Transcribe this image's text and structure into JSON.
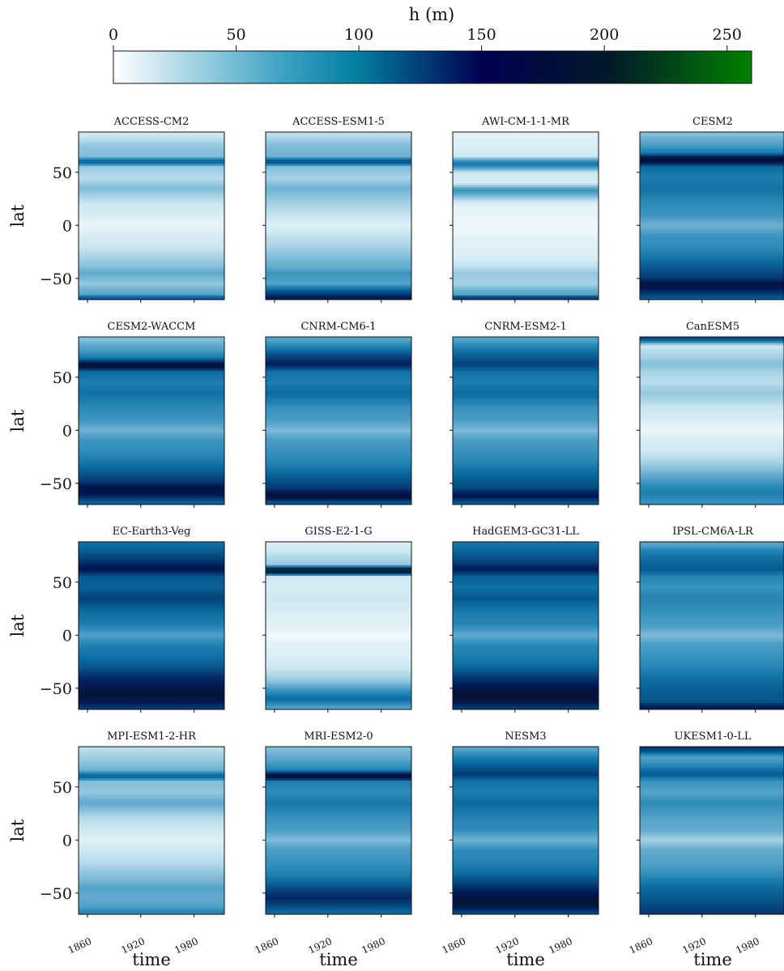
{
  "colorbar": {
    "label": "h (m)",
    "ticks": [
      "0",
      "50",
      "100",
      "150",
      "200",
      "250"
    ],
    "tick_values": [
      0,
      50,
      100,
      150,
      200,
      250
    ],
    "range": [
      0,
      260
    ],
    "colormap": "ocean_r",
    "color_stops": [
      "#ffffff",
      "#0380a0",
      "#000050",
      "#008000"
    ]
  },
  "chart_data": {
    "type": "heatmap",
    "layout": "4x4 small multiples, shared axes",
    "xlabel": "time",
    "ylabel": "lat",
    "x_ticks": [
      "1860",
      "1920",
      "1980"
    ],
    "y_ticks": [
      "50",
      "0",
      "−50"
    ],
    "y_tick_values": [
      50,
      0,
      -50
    ],
    "ylim": [
      -70,
      88
    ],
    "xlim": [
      1850,
      2014
    ],
    "colorbar_label": "h (m)",
    "panels": [
      {
        "title": "ACCESS-CM2",
        "profile": [
          [
            -68,
            110
          ],
          [
            -65,
            60
          ],
          [
            -55,
            40
          ],
          [
            -45,
            55
          ],
          [
            -40,
            45
          ],
          [
            -30,
            35
          ],
          [
            -20,
            25
          ],
          [
            -10,
            20
          ],
          [
            0,
            12
          ],
          [
            10,
            20
          ],
          [
            20,
            25
          ],
          [
            35,
            45
          ],
          [
            45,
            30
          ],
          [
            55,
            40
          ],
          [
            60,
            110
          ],
          [
            65,
            45
          ],
          [
            75,
            40
          ],
          [
            85,
            25
          ]
        ]
      },
      {
        "title": "ACCESS-ESM1-5",
        "profile": [
          [
            -68,
            150
          ],
          [
            -65,
            130
          ],
          [
            -55,
            60
          ],
          [
            -45,
            70
          ],
          [
            -40,
            55
          ],
          [
            -30,
            45
          ],
          [
            -20,
            35
          ],
          [
            -10,
            28
          ],
          [
            0,
            18
          ],
          [
            10,
            28
          ],
          [
            20,
            35
          ],
          [
            35,
            50
          ],
          [
            45,
            35
          ],
          [
            55,
            45
          ],
          [
            60,
            125
          ],
          [
            65,
            50
          ],
          [
            75,
            45
          ],
          [
            85,
            30
          ]
        ]
      },
      {
        "title": "AWI-CM-1-1-MR",
        "profile": [
          [
            -68,
            130
          ],
          [
            -65,
            60
          ],
          [
            -55,
            35
          ],
          [
            -45,
            40
          ],
          [
            -40,
            30
          ],
          [
            -30,
            20
          ],
          [
            -20,
            15
          ],
          [
            -10,
            12
          ],
          [
            0,
            8
          ],
          [
            10,
            12
          ],
          [
            20,
            15
          ],
          [
            33,
            70
          ],
          [
            40,
            20
          ],
          [
            50,
            25
          ],
          [
            58,
            95
          ],
          [
            65,
            25
          ],
          [
            75,
            20
          ],
          [
            85,
            15
          ]
        ]
      },
      {
        "title": "CESM2",
        "profile": [
          [
            -68,
            110
          ],
          [
            -60,
            150
          ],
          [
            -55,
            165
          ],
          [
            -50,
            130
          ],
          [
            -40,
            110
          ],
          [
            -30,
            90
          ],
          [
            -20,
            75
          ],
          [
            -10,
            70
          ],
          [
            0,
            50
          ],
          [
            10,
            70
          ],
          [
            20,
            75
          ],
          [
            35,
            95
          ],
          [
            45,
            85
          ],
          [
            55,
            100
          ],
          [
            62,
            190
          ],
          [
            68,
            90
          ],
          [
            75,
            65
          ],
          [
            85,
            45
          ]
        ]
      },
      {
        "title": "CESM2-WACCM",
        "profile": [
          [
            -68,
            105
          ],
          [
            -60,
            155
          ],
          [
            -55,
            165
          ],
          [
            -50,
            135
          ],
          [
            -40,
            110
          ],
          [
            -30,
            90
          ],
          [
            -20,
            75
          ],
          [
            -10,
            70
          ],
          [
            0,
            50
          ],
          [
            10,
            70
          ],
          [
            20,
            75
          ],
          [
            35,
            95
          ],
          [
            45,
            85
          ],
          [
            55,
            100
          ],
          [
            61,
            185
          ],
          [
            68,
            90
          ],
          [
            75,
            65
          ],
          [
            85,
            45
          ]
        ]
      },
      {
        "title": "CNRM-CM6-1",
        "profile": [
          [
            -68,
            110
          ],
          [
            -62,
            180
          ],
          [
            -55,
            130
          ],
          [
            -45,
            110
          ],
          [
            -38,
            95
          ],
          [
            -30,
            80
          ],
          [
            -20,
            70
          ],
          [
            -10,
            65
          ],
          [
            0,
            45
          ],
          [
            10,
            65
          ],
          [
            20,
            70
          ],
          [
            35,
            100
          ],
          [
            45,
            85
          ],
          [
            55,
            95
          ],
          [
            62,
            150
          ],
          [
            70,
            120
          ],
          [
            78,
            85
          ],
          [
            85,
            60
          ]
        ]
      },
      {
        "title": "CNRM-ESM2-1",
        "profile": [
          [
            -68,
            110
          ],
          [
            -62,
            160
          ],
          [
            -55,
            120
          ],
          [
            -45,
            105
          ],
          [
            -38,
            95
          ],
          [
            -30,
            80
          ],
          [
            -20,
            70
          ],
          [
            -10,
            65
          ],
          [
            0,
            45
          ],
          [
            10,
            65
          ],
          [
            20,
            70
          ],
          [
            35,
            100
          ],
          [
            45,
            85
          ],
          [
            55,
            95
          ],
          [
            62,
            125
          ],
          [
            70,
            105
          ],
          [
            78,
            85
          ],
          [
            85,
            60
          ]
        ]
      },
      {
        "title": "CanESM5",
        "profile": [
          [
            -68,
            70
          ],
          [
            -60,
            85
          ],
          [
            -55,
            80
          ],
          [
            -45,
            60
          ],
          [
            -40,
            50
          ],
          [
            -30,
            35
          ],
          [
            -20,
            25
          ],
          [
            -10,
            20
          ],
          [
            0,
            10
          ],
          [
            10,
            20
          ],
          [
            20,
            25
          ],
          [
            35,
            40
          ],
          [
            45,
            30
          ],
          [
            55,
            35
          ],
          [
            62,
            45
          ],
          [
            70,
            35
          ],
          [
            80,
            25
          ],
          [
            86,
            120
          ]
        ]
      },
      {
        "title": "EC-Earth3-Veg",
        "profile": [
          [
            -68,
            130
          ],
          [
            -60,
            165
          ],
          [
            -55,
            175
          ],
          [
            -48,
            150
          ],
          [
            -40,
            140
          ],
          [
            -30,
            110
          ],
          [
            -20,
            95
          ],
          [
            -10,
            85
          ],
          [
            0,
            60
          ],
          [
            10,
            85
          ],
          [
            20,
            95
          ],
          [
            35,
            125
          ],
          [
            45,
            105
          ],
          [
            55,
            110
          ],
          [
            62,
            160
          ],
          [
            70,
            130
          ],
          [
            78,
            110
          ],
          [
            86,
            95
          ]
        ]
      },
      {
        "title": "GISS-E2-1-G",
        "profile": [
          [
            -68,
            60
          ],
          [
            -60,
            100
          ],
          [
            -55,
            80
          ],
          [
            -45,
            45
          ],
          [
            -40,
            35
          ],
          [
            -30,
            25
          ],
          [
            -20,
            18
          ],
          [
            -10,
            15
          ],
          [
            0,
            8
          ],
          [
            10,
            15
          ],
          [
            20,
            18
          ],
          [
            35,
            25
          ],
          [
            45,
            20
          ],
          [
            55,
            25
          ],
          [
            61,
            210
          ],
          [
            66,
            40
          ],
          [
            75,
            30
          ],
          [
            85,
            20
          ]
        ]
      },
      {
        "title": "HadGEM3-GC31-LL",
        "profile": [
          [
            -68,
            130
          ],
          [
            -60,
            170
          ],
          [
            -55,
            180
          ],
          [
            -48,
            150
          ],
          [
            -40,
            130
          ],
          [
            -30,
            100
          ],
          [
            -20,
            85
          ],
          [
            -10,
            80
          ],
          [
            0,
            55
          ],
          [
            10,
            80
          ],
          [
            20,
            85
          ],
          [
            35,
            110
          ],
          [
            45,
            95
          ],
          [
            55,
            105
          ],
          [
            62,
            150
          ],
          [
            70,
            120
          ],
          [
            78,
            105
          ],
          [
            86,
            90
          ]
        ]
      },
      {
        "title": "IPSL-CM6A-LR",
        "profile": [
          [
            -68,
            150
          ],
          [
            -62,
            110
          ],
          [
            -55,
            110
          ],
          [
            -45,
            100
          ],
          [
            -40,
            95
          ],
          [
            -30,
            80
          ],
          [
            -20,
            70
          ],
          [
            -10,
            65
          ],
          [
            0,
            45
          ],
          [
            10,
            65
          ],
          [
            20,
            70
          ],
          [
            35,
            80
          ],
          [
            45,
            70
          ],
          [
            55,
            80
          ],
          [
            62,
            110
          ],
          [
            70,
            100
          ],
          [
            78,
            85
          ],
          [
            85,
            60
          ]
        ]
      },
      {
        "title": "MPI-ESM1-2-HR",
        "profile": [
          [
            -68,
            80
          ],
          [
            -62,
            60
          ],
          [
            -55,
            55
          ],
          [
            -45,
            60
          ],
          [
            -40,
            50
          ],
          [
            -30,
            40
          ],
          [
            -20,
            30
          ],
          [
            -10,
            25
          ],
          [
            0,
            15
          ],
          [
            10,
            25
          ],
          [
            20,
            30
          ],
          [
            35,
            55
          ],
          [
            45,
            40
          ],
          [
            55,
            45
          ],
          [
            60,
            110
          ],
          [
            66,
            50
          ],
          [
            75,
            40
          ],
          [
            85,
            30
          ]
        ]
      },
      {
        "title": "MRI-ESM2-0",
        "profile": [
          [
            -68,
            100
          ],
          [
            -62,
            120
          ],
          [
            -55,
            140
          ],
          [
            -48,
            125
          ],
          [
            -40,
            100
          ],
          [
            -30,
            80
          ],
          [
            -20,
            70
          ],
          [
            -10,
            65
          ],
          [
            0,
            45
          ],
          [
            10,
            65
          ],
          [
            20,
            70
          ],
          [
            35,
            90
          ],
          [
            45,
            75
          ],
          [
            55,
            85
          ],
          [
            60,
            190
          ],
          [
            66,
            80
          ],
          [
            75,
            60
          ],
          [
            85,
            45
          ]
        ]
      },
      {
        "title": "NESM3",
        "profile": [
          [
            -68,
            120
          ],
          [
            -60,
            180
          ],
          [
            -55,
            170
          ],
          [
            -48,
            145
          ],
          [
            -40,
            120
          ],
          [
            -30,
            95
          ],
          [
            -20,
            80
          ],
          [
            -10,
            75
          ],
          [
            0,
            50
          ],
          [
            10,
            75
          ],
          [
            20,
            80
          ],
          [
            35,
            100
          ],
          [
            45,
            85
          ],
          [
            55,
            95
          ],
          [
            62,
            130
          ],
          [
            70,
            105
          ],
          [
            78,
            85
          ],
          [
            85,
            60
          ]
        ]
      },
      {
        "title": "UKESM1-0-LL",
        "profile": [
          [
            -68,
            130
          ],
          [
            -62,
            120
          ],
          [
            -55,
            110
          ],
          [
            -45,
            100
          ],
          [
            -40,
            90
          ],
          [
            -30,
            70
          ],
          [
            -20,
            60
          ],
          [
            -10,
            55
          ],
          [
            0,
            35
          ],
          [
            10,
            55
          ],
          [
            20,
            60
          ],
          [
            35,
            75
          ],
          [
            45,
            60
          ],
          [
            55,
            70
          ],
          [
            62,
            110
          ],
          [
            70,
            80
          ],
          [
            78,
            60
          ],
          [
            86,
            130
          ]
        ]
      }
    ]
  }
}
